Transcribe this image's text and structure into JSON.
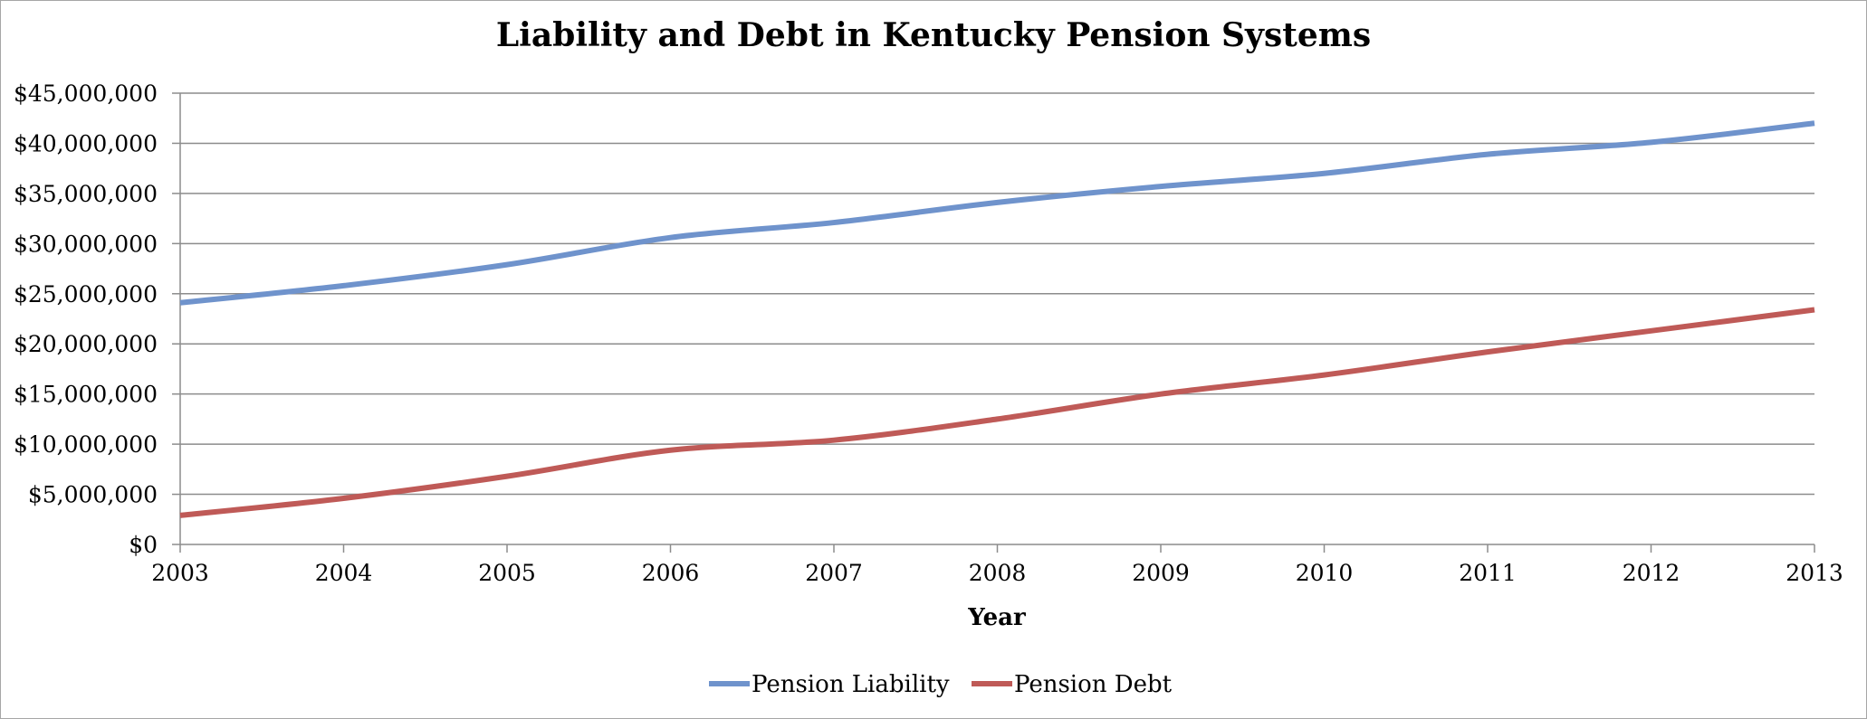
{
  "chart_data": {
    "type": "line",
    "title": "Liability and Debt in Kentucky Pension Systems",
    "xlabel": "Year",
    "ylabel": "",
    "x": [
      2003,
      2004,
      2005,
      2006,
      2007,
      2008,
      2009,
      2010,
      2011,
      2012,
      2013
    ],
    "x_tick_labels": [
      "2003",
      "2004",
      "2005",
      "2006",
      "2007",
      "2008",
      "2009",
      "2010",
      "2011",
      "2012",
      "2013"
    ],
    "ylim": [
      0,
      45000000
    ],
    "y_ticks": [
      0,
      5000000,
      10000000,
      15000000,
      20000000,
      25000000,
      30000000,
      35000000,
      40000000,
      45000000
    ],
    "y_tick_labels": [
      "$0",
      "$5,000,000",
      "$10,000,000",
      "$15,000,000",
      "$20,000,000",
      "$25,000,000",
      "$30,000,000",
      "$35,000,000",
      "$40,000,000",
      "$45,000,000"
    ],
    "grid": true,
    "legend_position": "bottom-center",
    "series": [
      {
        "name": "Pension Liability",
        "color": "#6f93cc",
        "values": [
          24100000,
          25800000,
          27900000,
          30600000,
          32100000,
          34100000,
          35700000,
          37000000,
          38900000,
          40100000,
          42000000
        ]
      },
      {
        "name": "Pension Debt",
        "color": "#bf5a57",
        "values": [
          2900000,
          4600000,
          6800000,
          9400000,
          10400000,
          12500000,
          15000000,
          16900000,
          19200000,
          21300000,
          23400000
        ]
      }
    ]
  }
}
